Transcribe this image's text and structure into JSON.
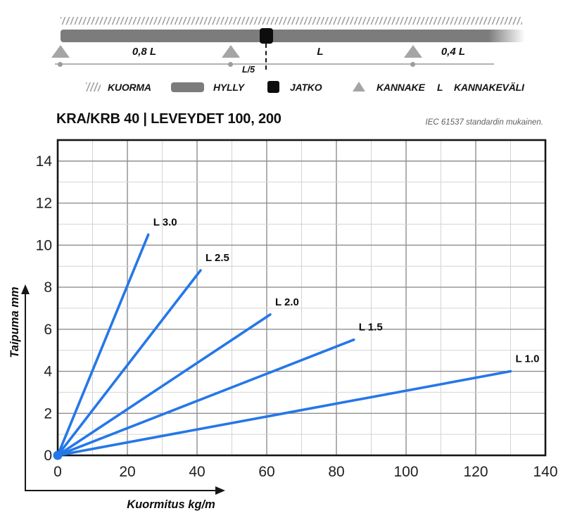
{
  "diagram": {
    "span_labels": {
      "left": "0,8 L",
      "middle": "L",
      "right": "0,4 L",
      "joint_offset": "L/5"
    }
  },
  "legend": {
    "items": [
      {
        "name": "kuorma",
        "label": "KUORMA"
      },
      {
        "name": "hylly",
        "label": "HYLLY"
      },
      {
        "name": "jatko",
        "label": "JATKO"
      },
      {
        "name": "kannake",
        "label": "KANNAKE"
      },
      {
        "name": "kannakevali",
        "symbol": "L",
        "label": "KANNAKEVÄLI"
      }
    ]
  },
  "header": {
    "title": "KRA/KRB 40 | LEVEYDET 100, 200",
    "standard_note": "IEC 61537 standardin mukainen."
  },
  "chart_data": {
    "type": "line",
    "title": "KRA/KRB 40 | LEVEYDET 100, 200",
    "xlabel": "Kuormitus kg/m",
    "ylabel": "Taipuma mm",
    "xlim": [
      0,
      140
    ],
    "ylim": [
      0,
      15
    ],
    "x_major_ticks": [
      0,
      20,
      40,
      60,
      80,
      100,
      120,
      140
    ],
    "y_major_ticks": [
      0,
      2,
      4,
      6,
      8,
      10,
      12,
      14
    ],
    "x_minor_step": 10,
    "y_minor_step": 1,
    "grid": true,
    "legend_position": "labels-at-line-ends",
    "line_color": "#2577e8",
    "series": [
      {
        "name": "L 3.0",
        "points": [
          [
            0,
            0
          ],
          [
            26,
            10.5
          ]
        ]
      },
      {
        "name": "L 2.5",
        "points": [
          [
            0,
            0
          ],
          [
            41,
            8.8
          ]
        ]
      },
      {
        "name": "L 2.0",
        "points": [
          [
            0,
            0
          ],
          [
            61,
            6.7
          ]
        ]
      },
      {
        "name": "L 1.5",
        "points": [
          [
            0,
            0
          ],
          [
            85,
            5.5
          ]
        ]
      },
      {
        "name": "L 1.0",
        "points": [
          [
            0,
            0
          ],
          [
            130,
            4.0
          ]
        ]
      }
    ]
  },
  "colors": {
    "accent_blue": "#2577e8",
    "beam_gray": "#7c7c7c",
    "support_gray": "#a5a5a5",
    "joint_black": "#0d0d0d",
    "grid_major": "#8f8f8f",
    "grid_minor": "#d4d4d4",
    "axis_black": "#161616"
  }
}
